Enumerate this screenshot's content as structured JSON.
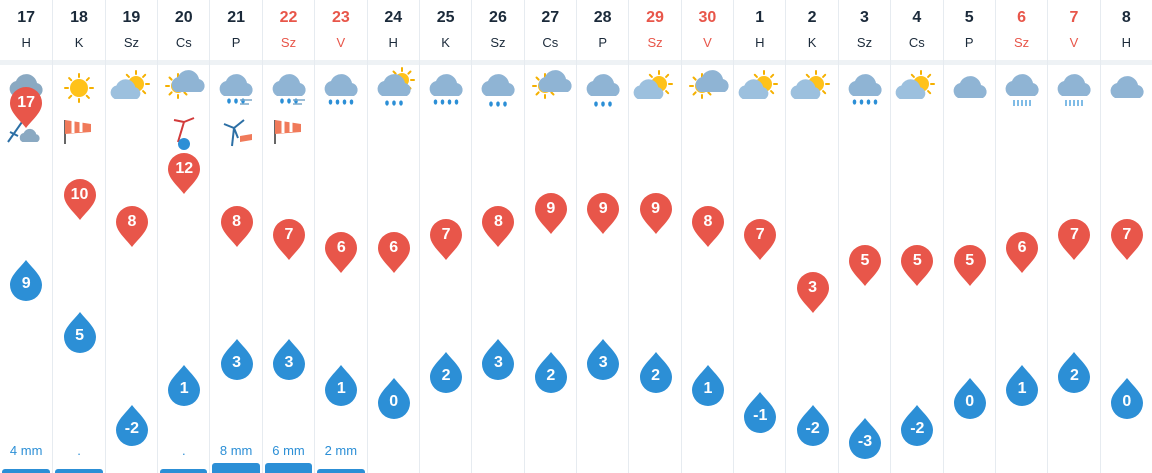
{
  "colors": {
    "max": "#e8564a",
    "min": "#2c8fd6",
    "weekend": "#e8564a"
  },
  "days": [
    {
      "num": "17",
      "name": "H",
      "weekend": false,
      "max": "17",
      "min": "9",
      "icon": "storm-cloud-icon",
      "extra": "wind-storm-icon",
      "precip": "4 mm",
      "bar": 0.4
    },
    {
      "num": "18",
      "name": "K",
      "weekend": false,
      "max": "10",
      "min": "5",
      "icon": "sun-icon",
      "extra": "windsock-icon",
      "precip": ".",
      "bar": 0.4
    },
    {
      "num": "19",
      "name": "Sz",
      "weekend": false,
      "max": "8",
      "min": "-2",
      "icon": "partly-cloudy-icon",
      "extra": "",
      "precip": "",
      "bar": 0
    },
    {
      "num": "20",
      "name": "Cs",
      "weekend": false,
      "max": "12",
      "min": "1",
      "icon": "sun-cloud-icon",
      "extra": "wind-warning-icon",
      "precip": ".",
      "bar": 0.4
    },
    {
      "num": "21",
      "name": "P",
      "weekend": false,
      "max": "8",
      "min": "3",
      "icon": "rain-wind-icon",
      "extra": "wind-turbine-icon",
      "precip": "8 mm",
      "bar": 1.0
    },
    {
      "num": "22",
      "name": "Sz",
      "weekend": true,
      "max": "7",
      "min": "3",
      "icon": "rain-wind-icon",
      "extra": "windsock-icon",
      "precip": "6 mm",
      "bar": 1.0
    },
    {
      "num": "23",
      "name": "V",
      "weekend": true,
      "max": "6",
      "min": "1",
      "icon": "rain-cloud-icon",
      "extra": "",
      "precip": "2 mm",
      "bar": 0.4
    },
    {
      "num": "24",
      "name": "H",
      "weekend": false,
      "max": "6",
      "min": "0",
      "icon": "sun-rain-icon",
      "extra": "",
      "precip": "",
      "bar": 0
    },
    {
      "num": "25",
      "name": "K",
      "weekend": false,
      "max": "7",
      "min": "2",
      "icon": "rain-cloud-icon",
      "extra": "",
      "precip": "",
      "bar": 0
    },
    {
      "num": "26",
      "name": "Sz",
      "weekend": false,
      "max": "8",
      "min": "3",
      "icon": "drizzle-cloud-icon",
      "extra": "",
      "precip": "",
      "bar": 0
    },
    {
      "num": "27",
      "name": "Cs",
      "weekend": false,
      "max": "9",
      "min": "2",
      "icon": "sun-cloud-icon",
      "extra": "",
      "precip": "",
      "bar": 0
    },
    {
      "num": "28",
      "name": "P",
      "weekend": false,
      "max": "9",
      "min": "3",
      "icon": "drizzle-cloud-icon",
      "extra": "",
      "precip": "",
      "bar": 0
    },
    {
      "num": "29",
      "name": "Sz",
      "weekend": true,
      "max": "9",
      "min": "2",
      "icon": "partly-cloudy-icon",
      "extra": "",
      "precip": "",
      "bar": 0
    },
    {
      "num": "30",
      "name": "V",
      "weekend": true,
      "max": "8",
      "min": "1",
      "icon": "sun-cloud-icon",
      "extra": "",
      "precip": "",
      "bar": 0
    },
    {
      "num": "1",
      "name": "H",
      "weekend": false,
      "max": "7",
      "min": "-1",
      "icon": "partly-cloudy-icon",
      "extra": "",
      "precip": "",
      "bar": 0
    },
    {
      "num": "2",
      "name": "K",
      "weekend": false,
      "max": "3",
      "min": "-2",
      "icon": "partly-cloudy-icon",
      "extra": "",
      "precip": "",
      "bar": 0
    },
    {
      "num": "3",
      "name": "Sz",
      "weekend": false,
      "max": "5",
      "min": "-3",
      "icon": "rain-cloud-icon",
      "extra": "",
      "precip": "",
      "bar": 0
    },
    {
      "num": "4",
      "name": "Cs",
      "weekend": false,
      "max": "5",
      "min": "-2",
      "icon": "partly-cloudy-icon",
      "extra": "",
      "precip": "",
      "bar": 0
    },
    {
      "num": "5",
      "name": "P",
      "weekend": false,
      "max": "5",
      "min": "0",
      "icon": "cloud-icon",
      "extra": "",
      "precip": "",
      "bar": 0
    },
    {
      "num": "6",
      "name": "Sz",
      "weekend": true,
      "max": "6",
      "min": "1",
      "icon": "light-rain-cloud-icon",
      "extra": "",
      "precip": "",
      "bar": 0
    },
    {
      "num": "7",
      "name": "V",
      "weekend": true,
      "max": "7",
      "min": "2",
      "icon": "light-rain-cloud-icon",
      "extra": "",
      "precip": "",
      "bar": 0
    },
    {
      "num": "8",
      "name": "H",
      "weekend": false,
      "max": "7",
      "min": "0",
      "icon": "cloud-icon",
      "extra": "",
      "precip": "",
      "bar": 0
    }
  ]
}
